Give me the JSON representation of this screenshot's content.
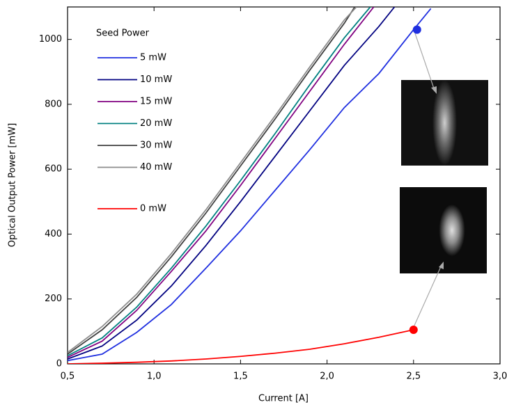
{
  "chart_data": {
    "type": "line",
    "x_label": "Current [A]",
    "y_label": "Optical Output Power [mW]",
    "legend_title": "Seed Power",
    "xlim": [
      0.5,
      3.0
    ],
    "xticks": [
      {
        "value": 0.5,
        "label": "0,5"
      },
      {
        "value": 1.0,
        "label": "1,0"
      },
      {
        "value": 1.5,
        "label": "1,5"
      },
      {
        "value": 2.0,
        "label": "2,0"
      },
      {
        "value": 2.5,
        "label": "2,5"
      },
      {
        "value": 3.0,
        "label": "3,0"
      }
    ],
    "ylim": [
      0,
      1100
    ],
    "yticks": [
      0,
      200,
      400,
      600,
      800,
      1000
    ],
    "series": [
      {
        "name": "5 mW",
        "color": "#1f2fe0",
        "x": [
          0.5,
          0.7,
          0.9,
          1.1,
          1.3,
          1.5,
          1.7,
          1.9,
          2.1,
          2.3,
          2.5,
          2.6
        ],
        "values": [
          10,
          30,
          97,
          183,
          295,
          410,
          535,
          660,
          790,
          895,
          1030,
          1095
        ]
      },
      {
        "name": "10 mW",
        "color": "#000080",
        "x": [
          0.5,
          0.7,
          0.9,
          1.1,
          1.3,
          1.5,
          1.7,
          1.9,
          2.1,
          2.3,
          2.39
        ],
        "values": [
          15,
          55,
          135,
          240,
          365,
          500,
          640,
          780,
          920,
          1040,
          1100
        ]
      },
      {
        "name": "15 mW",
        "color": "#800080",
        "x": [
          0.5,
          0.7,
          0.9,
          1.1,
          1.3,
          1.5,
          1.7,
          1.9,
          2.1,
          2.27
        ],
        "values": [
          20,
          70,
          165,
          285,
          410,
          550,
          695,
          840,
          985,
          1100
        ]
      },
      {
        "name": "20 mW",
        "color": "#008080",
        "x": [
          0.5,
          0.7,
          0.9,
          1.1,
          1.3,
          1.5,
          1.7,
          1.9,
          2.1,
          2.25
        ],
        "values": [
          25,
          80,
          175,
          295,
          425,
          565,
          710,
          860,
          1005,
          1100
        ]
      },
      {
        "name": "30 mW",
        "color": "#404040",
        "x": [
          0.5,
          0.7,
          0.9,
          1.1,
          1.3,
          1.5,
          1.7,
          1.9,
          2.1,
          2.16
        ],
        "values": [
          30,
          105,
          205,
          330,
          465,
          610,
          755,
          905,
          1050,
          1100
        ]
      },
      {
        "name": "40 mW",
        "color": "#8c8c8c",
        "x": [
          0.5,
          0.7,
          0.9,
          1.1,
          1.3,
          1.5,
          1.7,
          1.9,
          2.1,
          2.17
        ],
        "values": [
          35,
          115,
          215,
          340,
          475,
          620,
          765,
          915,
          1060,
          1100
        ]
      },
      {
        "name": "0 mW",
        "color": "#ff0000",
        "x": [
          0.5,
          0.7,
          0.9,
          1.1,
          1.3,
          1.5,
          1.7,
          1.9,
          2.1,
          2.3,
          2.5
        ],
        "values": [
          0,
          2,
          5,
          9,
          15,
          23,
          33,
          45,
          62,
          82,
          105
        ]
      }
    ],
    "highlights": [
      {
        "x": 2.52,
        "value": 1030,
        "color": "#1f2fe0"
      },
      {
        "x": 2.5,
        "value": 105,
        "color": "#ff0000"
      }
    ]
  }
}
